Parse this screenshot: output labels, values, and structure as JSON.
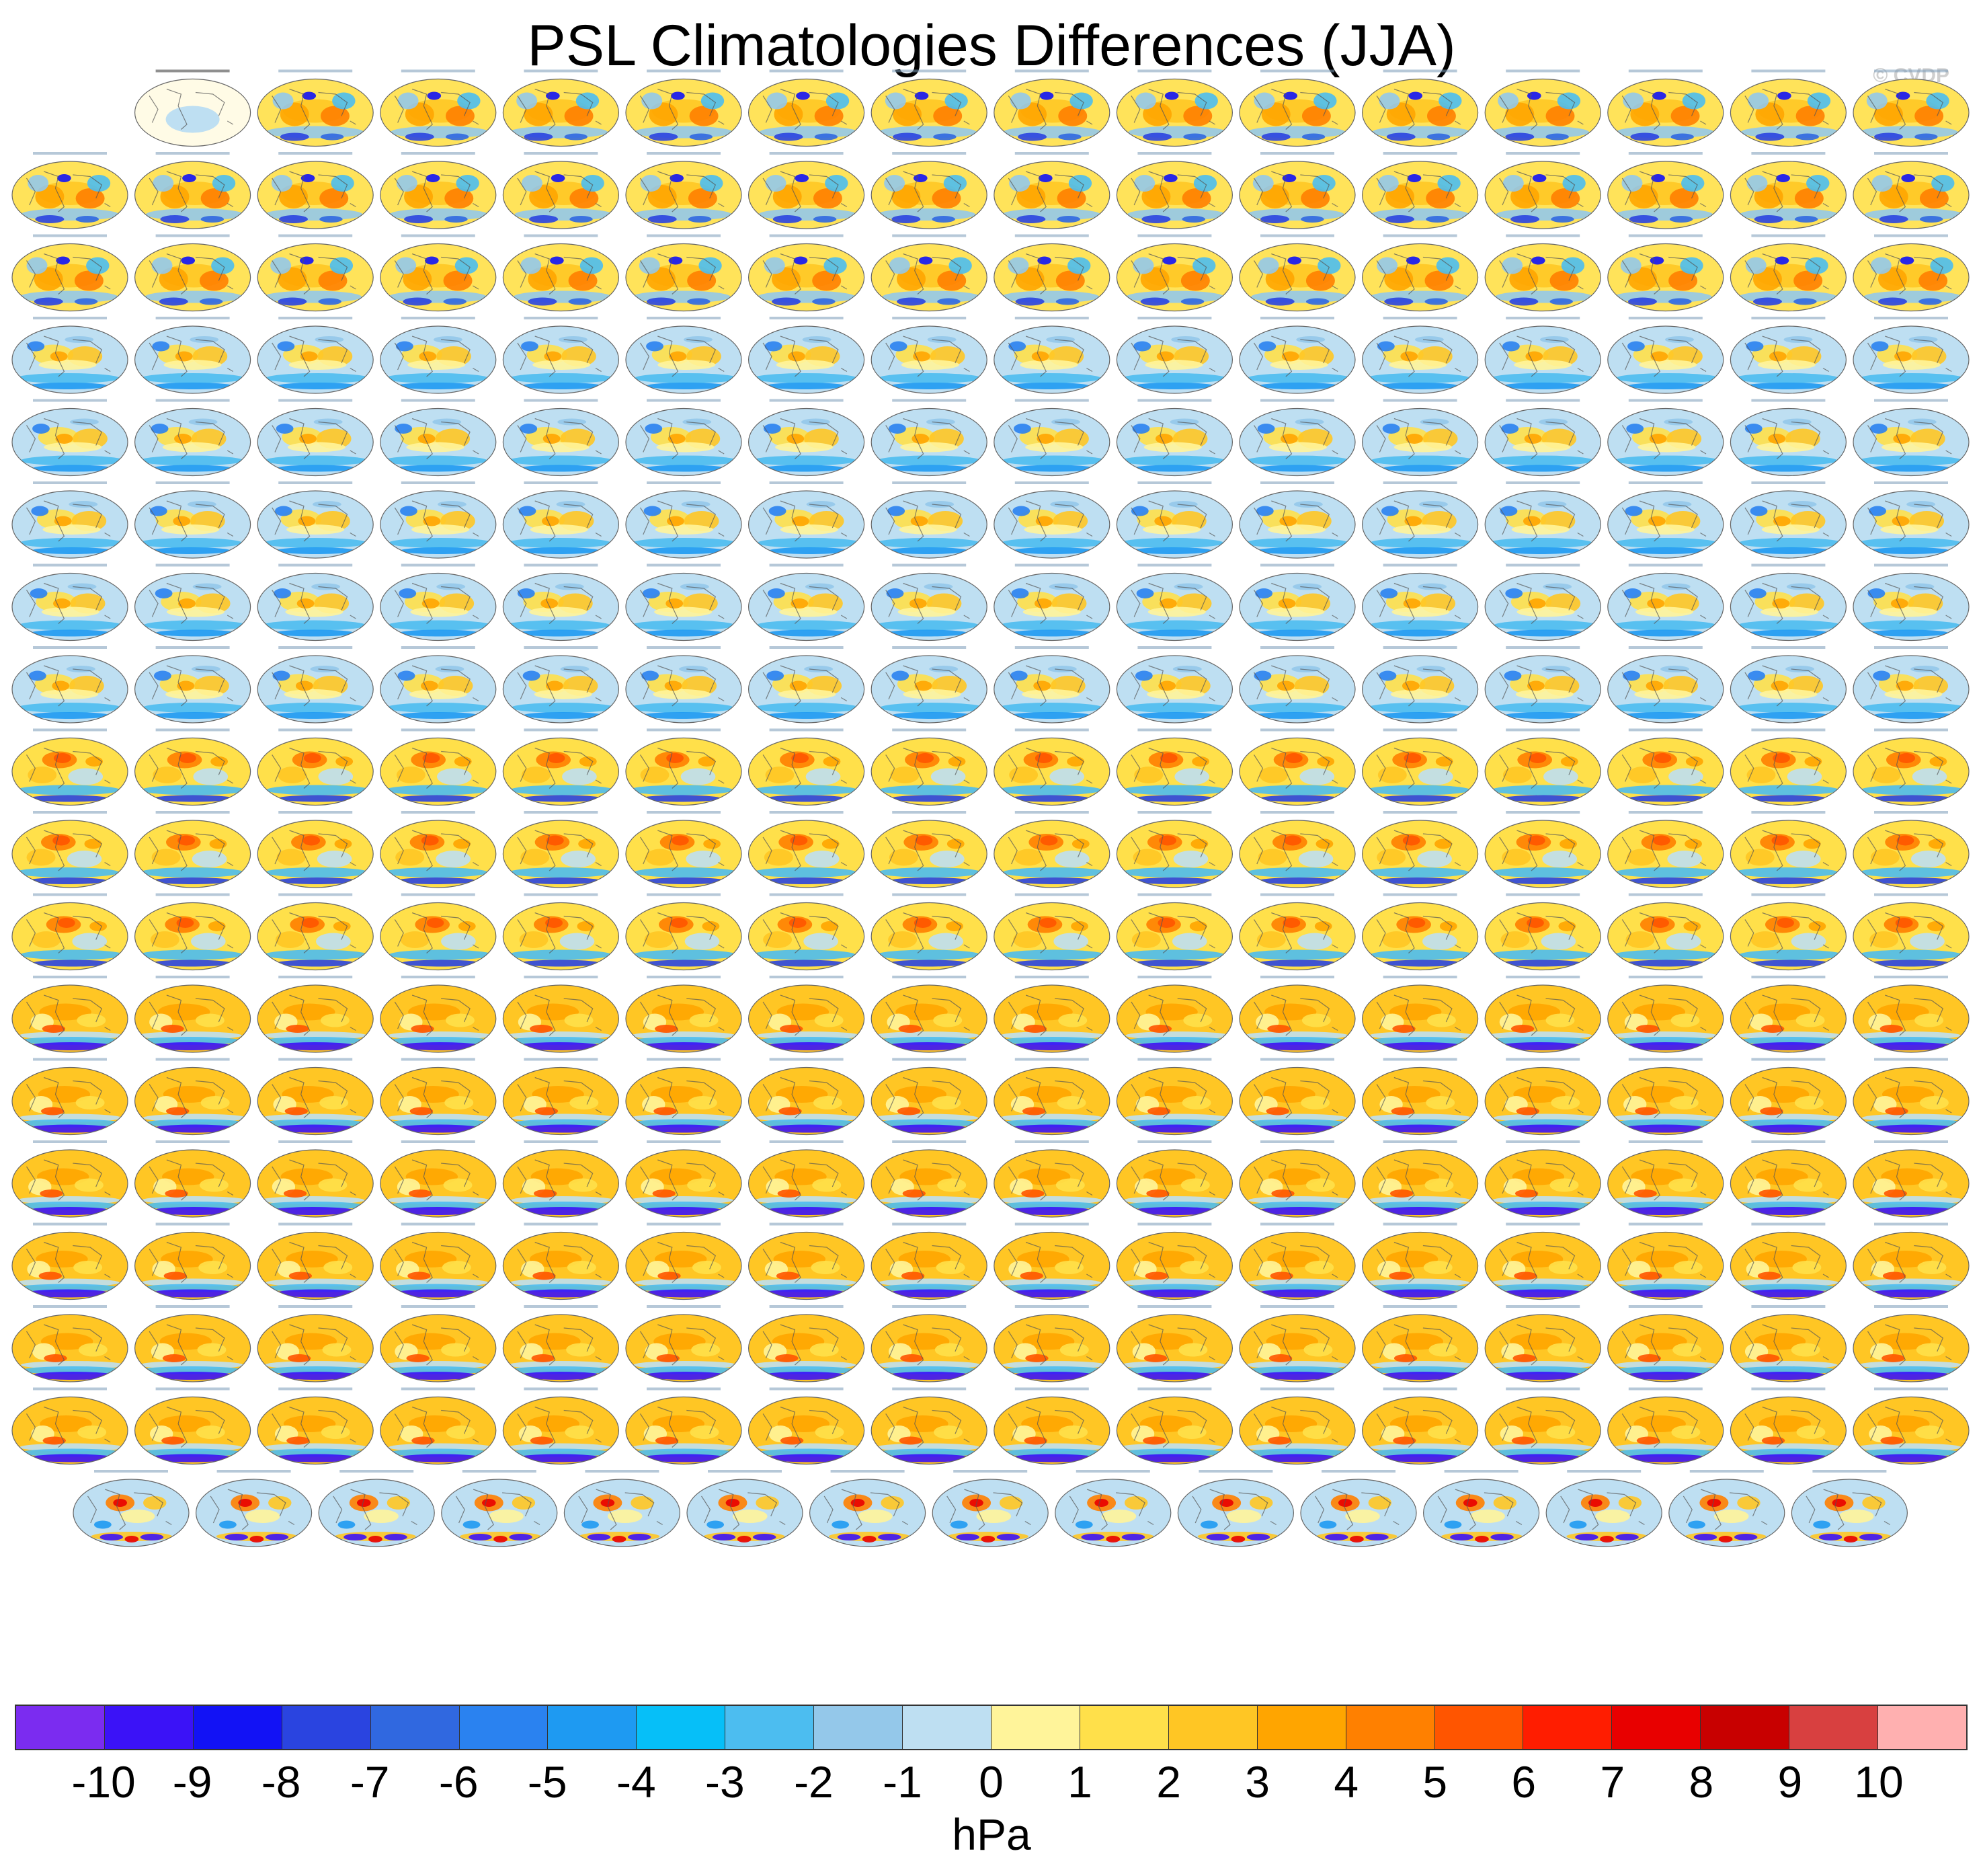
{
  "title": "PSL Climatologies Differences (JJA)",
  "watermark": "© CVDP",
  "chart_data": {
    "type": "heatmap",
    "title": "PSL Climatologies Differences (JJA)",
    "colorbar": {
      "units": "hPa",
      "ticks": [
        "-10",
        "-9",
        "-8",
        "-7",
        "-6",
        "-5",
        "-4",
        "-3",
        "-2",
        "-1",
        "0",
        "1",
        "2",
        "3",
        "4",
        "5",
        "6",
        "7",
        "8",
        "9",
        "10"
      ],
      "colors": [
        "#7b2cf0",
        "#3b12f7",
        "#1212f5",
        "#2a44e0",
        "#3068e0",
        "#2a82f0",
        "#1e9af2",
        "#06bff8",
        "#4cbdf0",
        "#94c8ea",
        "#bedff2",
        "#fff49a",
        "#ffe04a",
        "#ffc624",
        "#ffa500",
        "#ff8000",
        "#ff5500",
        "#ff1d00",
        "#e80000",
        "#c80000",
        "#d84040",
        "#ffb0b0"
      ]
    },
    "panel_rows": [
      15,
      16,
      16,
      16,
      16,
      16,
      16,
      16,
      16,
      16,
      16,
      16,
      16,
      16,
      16,
      16,
      16,
      15
    ],
    "panel_families": [
      {
        "rows": [
          0,
          1,
          2
        ],
        "palette": "access"
      },
      {
        "rows": [
          3,
          4,
          5,
          6,
          7
        ],
        "palette": "canesm"
      },
      {
        "rows": [
          8,
          9,
          10
        ],
        "palette": "cesm1"
      },
      {
        "rows": [
          11,
          12,
          13,
          14,
          15,
          16
        ],
        "palette": "cesm2"
      },
      {
        "rows": [
          17
        ],
        "palette": "csiro"
      }
    ],
    "first_panel_title": "ERA5_1-ERA5"
  }
}
